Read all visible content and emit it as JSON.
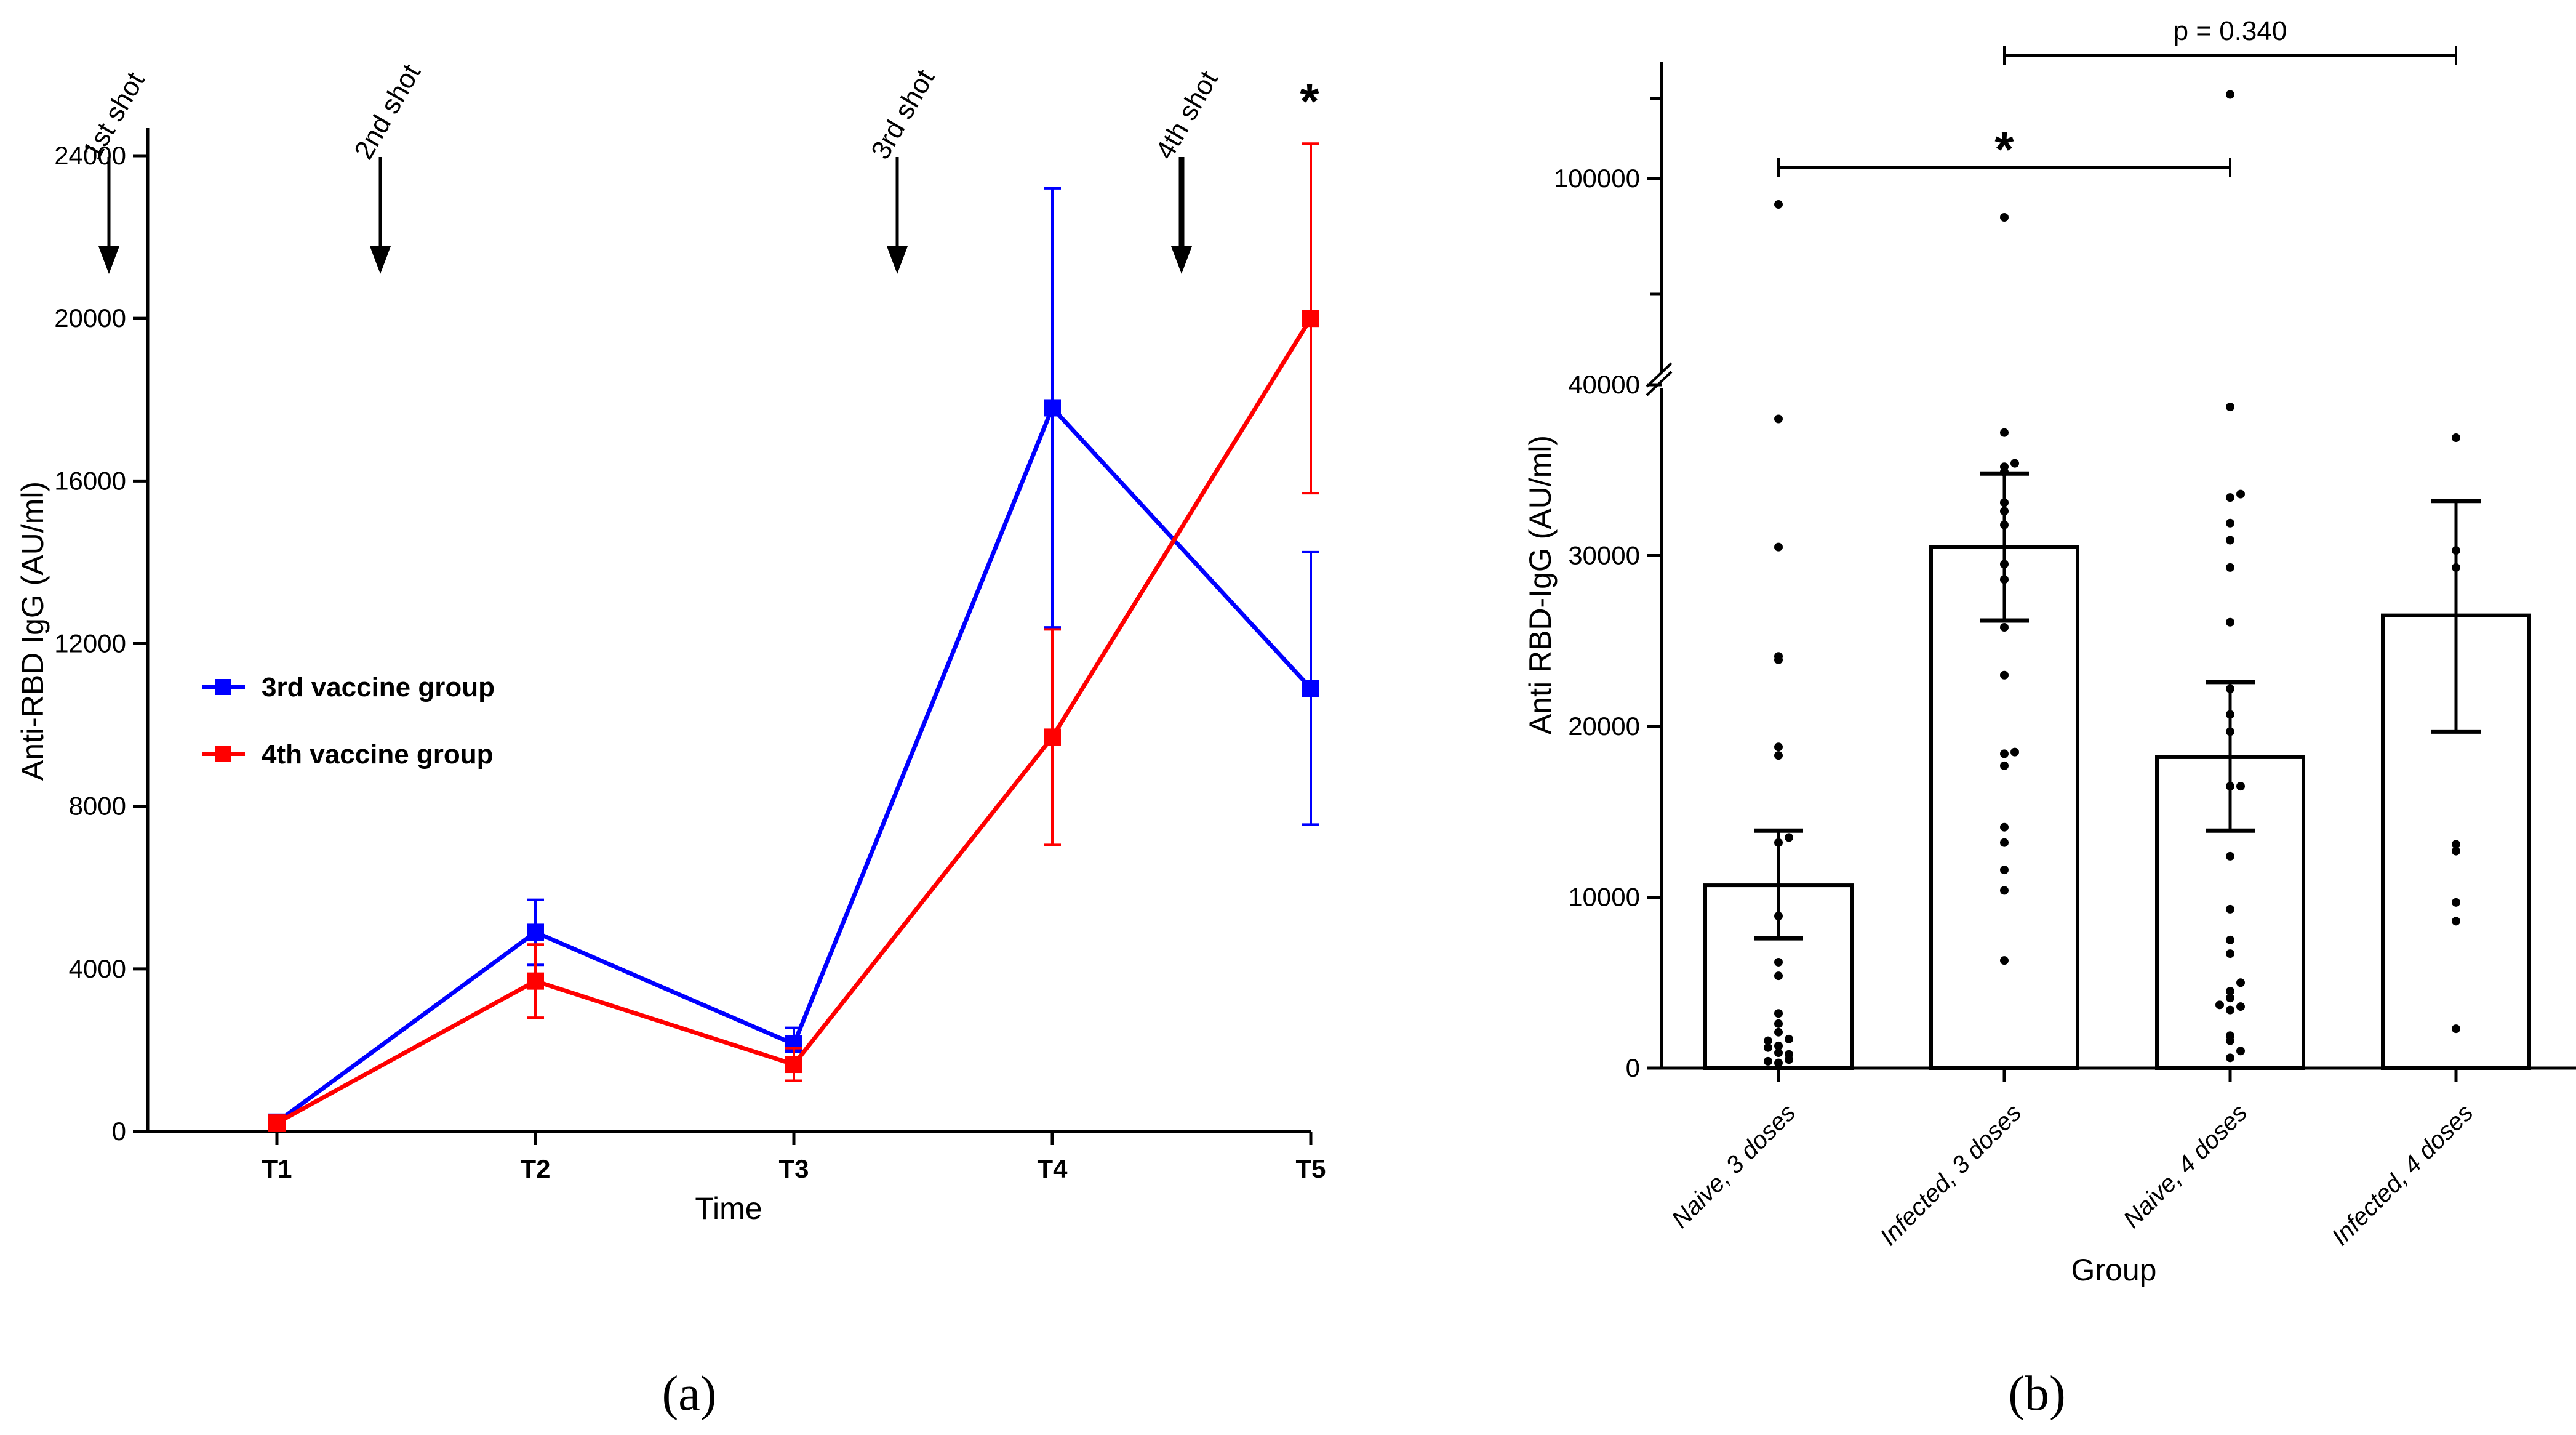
{
  "chart_data": [
    {
      "type": "line",
      "panel_label": "(a)",
      "xlabel": "Time",
      "ylabel": "Anti-RBD IgG (AU/ml)",
      "categories": [
        "T1",
        "T2",
        "T3",
        "T4",
        "T5"
      ],
      "ylim": [
        0,
        24000
      ],
      "yticks": [
        "0",
        "4000",
        "8000",
        "12000",
        "16000",
        "20000",
        "24000"
      ],
      "series": [
        {
          "name": "3rd vaccine group",
          "color": "#0000ff",
          "values": [
            230,
            4900,
            2150,
            17800,
            10900
          ],
          "err_low": [
            150,
            4100,
            1750,
            12400,
            7550
          ],
          "err_high": [
            310,
            5700,
            2550,
            23200,
            14250
          ]
        },
        {
          "name": "4th vaccine group",
          "color": "#ff0000",
          "values": [
            210,
            3700,
            1650,
            9700,
            20000
          ],
          "err_low": [
            130,
            2800,
            1250,
            7050,
            15700
          ],
          "err_high": [
            290,
            4600,
            2050,
            12350,
            24300
          ]
        }
      ],
      "annotations": [
        {
          "text": "1st shot",
          "at": 0.35
        },
        {
          "text": "2nd shot",
          "at": 1.4
        },
        {
          "text": "3rd shot",
          "at": 3.4
        },
        {
          "text": "4th shot",
          "at": 4.5
        }
      ],
      "significance": {
        "text": "*",
        "at": "T5"
      }
    },
    {
      "type": "bar",
      "panel_label": "(b)",
      "xlabel": "Group",
      "ylabel": "Anti  RBD-IgG (AU/ml)",
      "categories": [
        "Naive, 3 doses",
        "Infected, 3 doses",
        "Naive, 4 doses",
        "Infected, 4 doses"
      ],
      "values": [
        10700,
        30500,
        18200,
        26500
      ],
      "err_low": [
        7600,
        26200,
        13900,
        19700
      ],
      "err_high": [
        13900,
        34800,
        22600,
        33200
      ],
      "lower_range": [
        0,
        40000
      ],
      "upper_range": [
        40000,
        130000
      ],
      "lower_ticks": [
        "0",
        "10000",
        "20000",
        "30000",
        "40000"
      ],
      "upper_ticks": [
        "100000"
      ],
      "points": [
        [
          300,
          500,
          900,
          1300,
          1700,
          400,
          800,
          1200,
          1600,
          2100,
          2600,
          3200,
          5400,
          6200,
          8900,
          13200,
          13500,
          18300,
          18800,
          23900,
          24100,
          30500,
          38000,
          92000
        ],
        [
          6300,
          10400,
          11600,
          13200,
          14100,
          17700,
          18400,
          18500,
          23000,
          25800,
          28600,
          29500,
          31800,
          32600,
          33100,
          34900,
          35200,
          35400,
          37200,
          88000
        ],
        [
          600,
          1000,
          1600,
          1900,
          3400,
          3600,
          3700,
          4100,
          4500,
          5000,
          6700,
          7500,
          9300,
          12400,
          16500,
          16500,
          19700,
          20700,
          22200,
          26100,
          29300,
          30900,
          31900,
          33400,
          33600,
          38700,
          126000
        ],
        [
          2300,
          8600,
          9700,
          12700,
          13100,
          29300,
          30300,
          36900
        ]
      ],
      "comparisons": [
        {
          "from": 0,
          "to": 2,
          "label": "*"
        },
        {
          "from": 1,
          "to": 3,
          "label": "p = 0.340"
        }
      ]
    }
  ]
}
